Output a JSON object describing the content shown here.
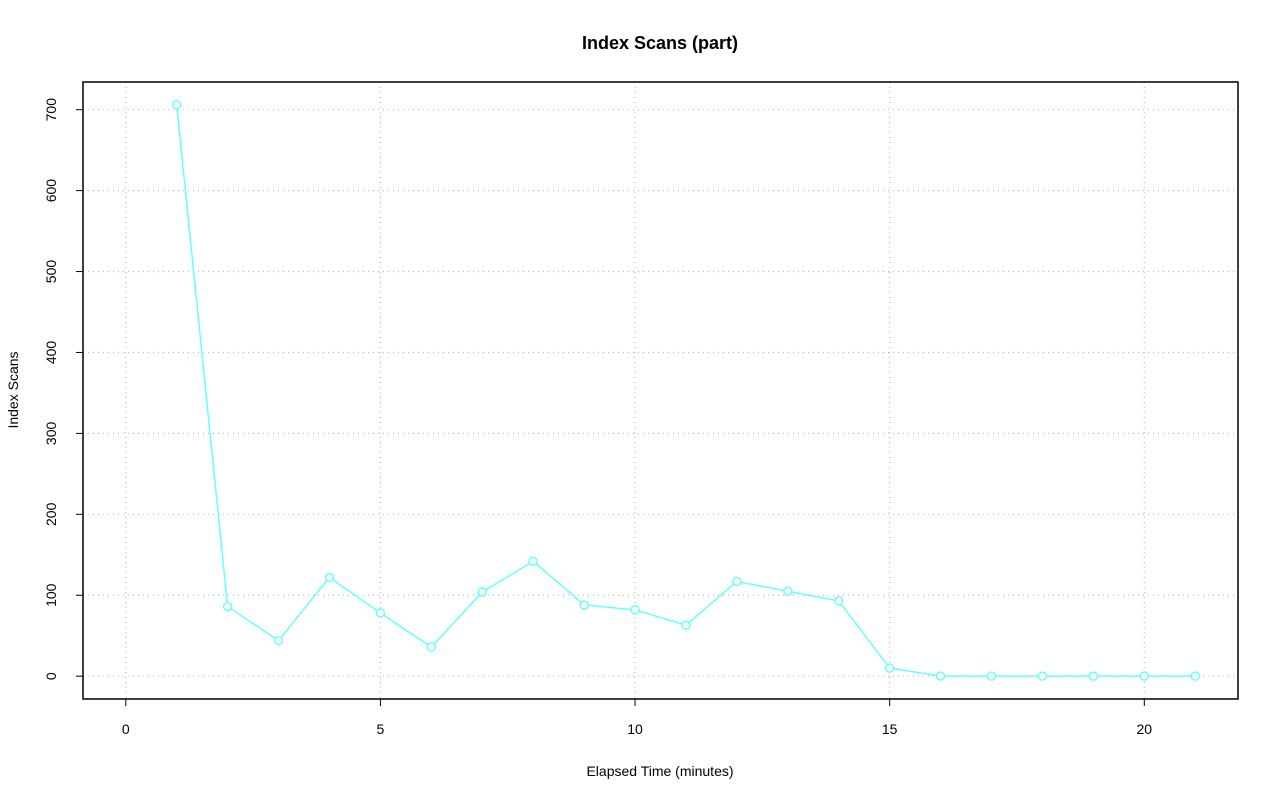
{
  "chart_data": {
    "type": "line",
    "title": "Index Scans (part)",
    "xlabel": "Elapsed Time (minutes)",
    "ylabel": "Index Scans",
    "x": [
      1,
      2,
      3,
      4,
      5,
      6,
      7,
      8,
      9,
      10,
      11,
      12,
      13,
      14,
      15,
      16,
      17,
      18,
      19,
      20,
      21
    ],
    "series": [
      {
        "name": "Index Scans",
        "color": "#66ffff",
        "values": [
          706,
          86,
          44,
          122,
          78,
          36,
          104,
          142,
          88,
          82,
          63,
          117,
          105,
          93,
          10,
          0,
          0,
          0,
          0,
          0,
          0
        ]
      }
    ],
    "xlim": [
      -0.84,
      21.84
    ],
    "ylim": [
      -28.2,
      734.2
    ],
    "xticks": [
      0,
      5,
      10,
      15,
      20
    ],
    "yticks": [
      0,
      100,
      200,
      300,
      400,
      500,
      600,
      700
    ],
    "grid": true
  }
}
